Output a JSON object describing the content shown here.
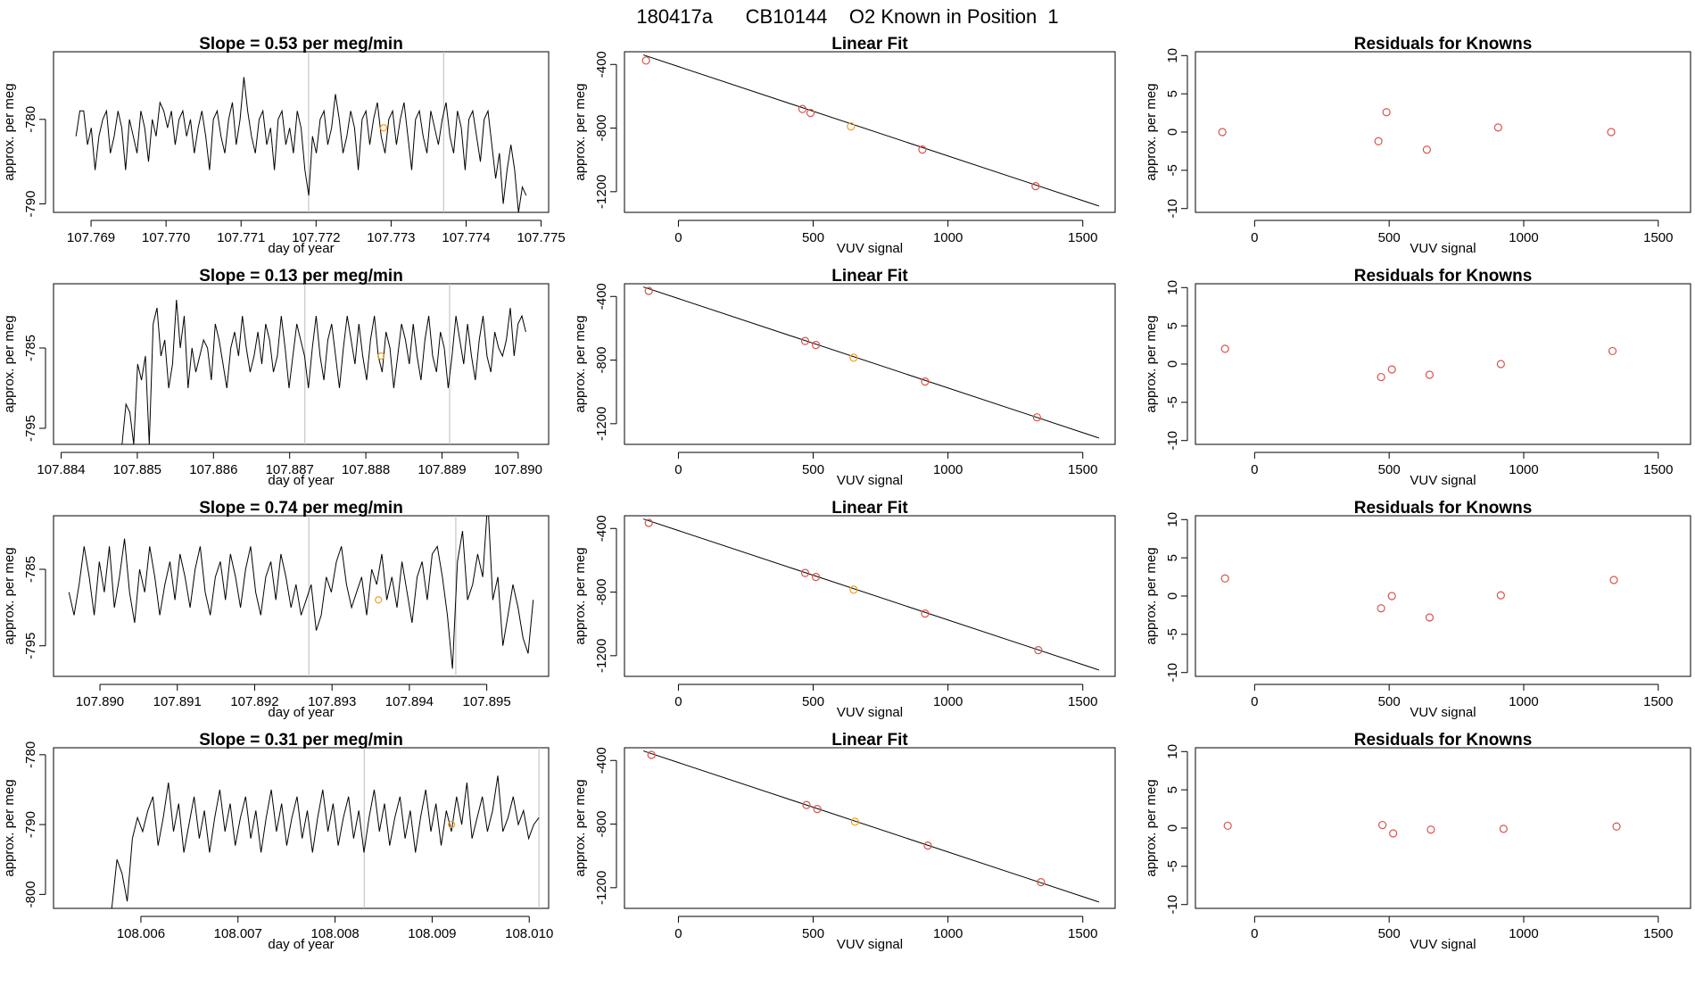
{
  "main_title": "180417a      CB10144    O2 Known in Position  1",
  "colors": {
    "point": "#d9534f",
    "highlight": "#f0a020",
    "line": "#000000",
    "marker_line": "#bbbbbb"
  },
  "chart_data": [
    {
      "type": "line",
      "panel": "drift",
      "row": 1,
      "title": "Slope =  0.53  per meg/min",
      "xlabel": "day of year",
      "ylabel": "approx. per meg",
      "xlim": [
        107.7685,
        107.7751
      ],
      "ylim": [
        -791,
        -772
      ],
      "xticks": [
        107.769,
        107.77,
        107.771,
        107.772,
        107.773,
        107.774,
        107.775
      ],
      "xtick_labels": [
        "107.769",
        "107.770",
        "107.771",
        "107.772",
        "107.773",
        "107.774",
        "107.775"
      ],
      "yticks": [
        -790,
        -780
      ],
      "ytick_labels": [
        "-790",
        "-780"
      ],
      "x_start": 107.7688,
      "x_end": 107.7748,
      "marker_x": [
        107.7719,
        107.7737
      ],
      "highlight_point": {
        "x": 107.7729,
        "y": -781
      },
      "y_values": [
        -782,
        -779,
        -779,
        -783,
        -781,
        -786,
        -782,
        -780,
        -779,
        -784,
        -782,
        -779,
        -781,
        -786,
        -780,
        -782,
        -784,
        -779,
        -781,
        -785,
        -780,
        -782,
        -778,
        -779,
        -781,
        -779,
        -783,
        -780,
        -779,
        -782,
        -780,
        -784,
        -781,
        -779,
        -782,
        -786,
        -780,
        -779,
        -782,
        -784,
        -780,
        -778,
        -783,
        -780,
        -775,
        -779,
        -782,
        -784,
        -780,
        -779,
        -783,
        -781,
        -786,
        -780,
        -779,
        -783,
        -781,
        -784,
        -779,
        -781,
        -786,
        -789,
        -782,
        -784,
        -780,
        -779,
        -783,
        -781,
        -777,
        -780,
        -784,
        -782,
        -779,
        -781,
        -786,
        -780,
        -779,
        -783,
        -780,
        -778,
        -782,
        -784,
        -780,
        -779,
        -783,
        -780,
        -778,
        -782,
        -786,
        -780,
        -779,
        -782,
        -784,
        -779,
        -781,
        -783,
        -780,
        -778,
        -782,
        -784,
        -779,
        -781,
        -786,
        -780,
        -779,
        -782,
        -785,
        -780,
        -779,
        -783,
        -787,
        -784,
        -790,
        -786,
        -783,
        -786,
        -791,
        -788,
        -789
      ]
    },
    {
      "type": "line",
      "panel": "drift",
      "row": 2,
      "title": "Slope =  0.13  per meg/min",
      "xlabel": "day of year",
      "ylabel": "approx. per meg",
      "xlim": [
        107.8839,
        107.8904
      ],
      "ylim": [
        -797,
        -777
      ],
      "xticks": [
        107.884,
        107.885,
        107.886,
        107.887,
        107.888,
        107.889,
        107.89
      ],
      "xtick_labels": [
        "107.884",
        "107.885",
        "107.886",
        "107.887",
        "107.888",
        "107.889",
        "107.890"
      ],
      "yticks": [
        -795,
        -785
      ],
      "ytick_labels": [
        "-795",
        "-785"
      ],
      "x_start": 107.8848,
      "x_end": 107.8901,
      "marker_x": [
        107.8872,
        107.8891
      ],
      "highlight_point": {
        "x": 107.8882,
        "y": -786
      },
      "y_values": [
        -797,
        -792,
        -793,
        -797,
        -787,
        -789,
        -786,
        -797,
        -782,
        -780,
        -786,
        -784,
        -790,
        -787,
        -779,
        -785,
        -781,
        -790,
        -785,
        -788,
        -786,
        -784,
        -785,
        -789,
        -782,
        -784,
        -787,
        -790,
        -785,
        -783,
        -786,
        -781,
        -785,
        -788,
        -786,
        -783,
        -787,
        -782,
        -784,
        -788,
        -786,
        -781,
        -785,
        -790,
        -786,
        -782,
        -784,
        -786,
        -790,
        -785,
        -781,
        -786,
        -789,
        -784,
        -782,
        -786,
        -790,
        -785,
        -781,
        -784,
        -787,
        -782,
        -786,
        -789,
        -784,
        -781,
        -786,
        -788,
        -783,
        -785,
        -790,
        -786,
        -782,
        -784,
        -787,
        -782,
        -786,
        -789,
        -784,
        -781,
        -786,
        -788,
        -783,
        -785,
        -790,
        -786,
        -781,
        -784,
        -787,
        -782,
        -786,
        -789,
        -784,
        -781,
        -786,
        -788,
        -783,
        -785,
        -786,
        -784,
        -780,
        -786,
        -782,
        -781,
        -783
      ]
    },
    {
      "type": "line",
      "panel": "drift",
      "row": 3,
      "title": "Slope =  0.74  per meg/min",
      "xlabel": "day of year",
      "ylabel": "approx. per meg",
      "xlim": [
        107.8894,
        107.8958
      ],
      "ylim": [
        -799,
        -778
      ],
      "xticks": [
        107.89,
        107.891,
        107.892,
        107.893,
        107.894,
        107.895
      ],
      "xtick_labels": [
        "107.890",
        "107.891",
        "107.892",
        "107.893",
        "107.894",
        "107.895"
      ],
      "yticks": [
        -795,
        -785
      ],
      "ytick_labels": [
        "-795",
        "-785"
      ],
      "x_start": 107.8896,
      "x_end": 107.8956,
      "marker_x": [
        107.8927,
        107.8946
      ],
      "highlight_point": {
        "x": 107.8936,
        "y": -789
      },
      "y_values": [
        -788,
        -791,
        -787,
        -782,
        -786,
        -791,
        -784,
        -788,
        -782,
        -790,
        -786,
        -781,
        -788,
        -792,
        -785,
        -788,
        -782,
        -786,
        -791,
        -787,
        -784,
        -789,
        -783,
        -786,
        -790,
        -785,
        -782,
        -788,
        -791,
        -786,
        -784,
        -789,
        -783,
        -786,
        -790,
        -785,
        -782,
        -788,
        -791,
        -786,
        -784,
        -789,
        -783,
        -786,
        -790,
        -787,
        -791,
        -789,
        -787,
        -793,
        -791,
        -786,
        -788,
        -784,
        -782,
        -787,
        -790,
        -788,
        -786,
        -791,
        -785,
        -787,
        -783,
        -789,
        -786,
        -790,
        -784,
        -788,
        -792,
        -786,
        -784,
        -789,
        -783,
        -782,
        -786,
        -791,
        -798,
        -784,
        -780,
        -789,
        -787,
        -783,
        -786,
        -776,
        -789,
        -786,
        -795,
        -791,
        -787,
        -790,
        -794,
        -796,
        -789
      ]
    },
    {
      "type": "line",
      "panel": "drift",
      "row": 4,
      "title": "Slope =  0.31  per meg/min",
      "xlabel": "day of year",
      "ylabel": "approx. per meg",
      "xlim": [
        108.0051,
        108.0102
      ],
      "ylim": [
        -802,
        -779
      ],
      "xticks": [
        108.006,
        108.007,
        108.008,
        108.009,
        108.01
      ],
      "xtick_labels": [
        "108.006",
        "108.007",
        "108.008",
        "108.009",
        "108.010"
      ],
      "yticks": [
        -800,
        -790,
        -780
      ],
      "ytick_labels": [
        "-800",
        "-790",
        "-780"
      ],
      "x_start": 108.0057,
      "x_end": 108.0101,
      "marker_x": [
        108.0083,
        108.0101
      ],
      "highlight_point": {
        "x": 108.0092,
        "y": -790
      },
      "y_values": [
        -802,
        -795,
        -797,
        -801,
        -792,
        -789,
        -791,
        -788,
        -786,
        -793,
        -789,
        -784,
        -791,
        -787,
        -794,
        -790,
        -786,
        -792,
        -788,
        -794,
        -789,
        -785,
        -791,
        -787,
        -793,
        -789,
        -786,
        -792,
        -788,
        -794,
        -789,
        -785,
        -791,
        -787,
        -793,
        -789,
        -786,
        -792,
        -788,
        -794,
        -789,
        -785,
        -791,
        -787,
        -793,
        -789,
        -786,
        -792,
        -788,
        -794,
        -789,
        -785,
        -791,
        -787,
        -793,
        -789,
        -786,
        -792,
        -788,
        -794,
        -789,
        -785,
        -791,
        -787,
        -793,
        -788,
        -791,
        -786,
        -790,
        -784,
        -792,
        -789,
        -786,
        -791,
        -788,
        -783,
        -791,
        -789,
        -786,
        -790,
        -788,
        -792,
        -790,
        -789
      ]
    },
    {
      "type": "scatter",
      "panel": "fit",
      "row": 1,
      "title": "Linear Fit",
      "xlabel": "VUV signal",
      "ylabel": "approx. per meg",
      "xlim": [
        -200,
        1620
      ],
      "ylim": [
        -1330,
        -320
      ],
      "xticks": [
        0,
        500,
        1000,
        1500
      ],
      "yticks": [
        -1200,
        -800,
        -400
      ],
      "xtick_labels": [
        "0",
        "500",
        "1000",
        "1500"
      ],
      "ytick_labels": [
        "-1200",
        "-800",
        "-400"
      ],
      "fit_line": {
        "x": [
          -130,
          1560
        ],
        "y": [
          -340,
          -1290
        ]
      },
      "points": [
        {
          "x": -120,
          "y": -375
        },
        {
          "x": 460,
          "y": -680
        },
        {
          "x": 490,
          "y": -705
        },
        {
          "x": 905,
          "y": -935
        },
        {
          "x": 1325,
          "y": -1165
        }
      ],
      "highlight_points": [
        {
          "x": 640,
          "y": -790
        }
      ]
    },
    {
      "type": "scatter",
      "panel": "fit",
      "row": 2,
      "title": "Linear Fit",
      "xlabel": "VUV signal",
      "ylabel": "approx. per meg",
      "xlim": [
        -200,
        1620
      ],
      "ylim": [
        -1330,
        -320
      ],
      "xticks": [
        0,
        500,
        1000,
        1500
      ],
      "yticks": [
        -1200,
        -800,
        -400
      ],
      "xtick_labels": [
        "0",
        "500",
        "1000",
        "1500"
      ],
      "ytick_labels": [
        "-1200",
        "-800",
        "-400"
      ],
      "fit_line": {
        "x": [
          -130,
          1560
        ],
        "y": [
          -340,
          -1290
        ]
      },
      "points": [
        {
          "x": -110,
          "y": -365
        },
        {
          "x": 470,
          "y": -680
        },
        {
          "x": 510,
          "y": -705
        },
        {
          "x": 915,
          "y": -935
        },
        {
          "x": 1330,
          "y": -1160
        }
      ],
      "highlight_points": [
        {
          "x": 650,
          "y": -785
        }
      ]
    },
    {
      "type": "scatter",
      "panel": "fit",
      "row": 3,
      "title": "Linear Fit",
      "xlabel": "VUV signal",
      "ylabel": "approx. per meg",
      "xlim": [
        -200,
        1620
      ],
      "ylim": [
        -1330,
        -320
      ],
      "xticks": [
        0,
        500,
        1000,
        1500
      ],
      "yticks": [
        -1200,
        -800,
        -400
      ],
      "xtick_labels": [
        "0",
        "500",
        "1000",
        "1500"
      ],
      "ytick_labels": [
        "-1200",
        "-800",
        "-400"
      ],
      "fit_line": {
        "x": [
          -130,
          1560
        ],
        "y": [
          -340,
          -1290
        ]
      },
      "points": [
        {
          "x": -110,
          "y": -365
        },
        {
          "x": 470,
          "y": -680
        },
        {
          "x": 510,
          "y": -705
        },
        {
          "x": 915,
          "y": -935
        },
        {
          "x": 1335,
          "y": -1165
        }
      ],
      "highlight_points": [
        {
          "x": 650,
          "y": -785
        }
      ]
    },
    {
      "type": "scatter",
      "panel": "fit",
      "row": 4,
      "title": "Linear Fit",
      "xlabel": "VUV signal",
      "ylabel": "approx. per meg",
      "xlim": [
        -200,
        1620
      ],
      "ylim": [
        -1330,
        -320
      ],
      "xticks": [
        0,
        500,
        1000,
        1500
      ],
      "yticks": [
        -1200,
        -800,
        -400
      ],
      "xtick_labels": [
        "0",
        "500",
        "1000",
        "1500"
      ],
      "ytick_labels": [
        "-1200",
        "-800",
        "-400"
      ],
      "fit_line": {
        "x": [
          -130,
          1560
        ],
        "y": [
          -340,
          -1290
        ]
      },
      "points": [
        {
          "x": -100,
          "y": -365
        },
        {
          "x": 475,
          "y": -680
        },
        {
          "x": 515,
          "y": -705
        },
        {
          "x": 925,
          "y": -935
        },
        {
          "x": 1345,
          "y": -1165
        }
      ],
      "highlight_points": [
        {
          "x": 655,
          "y": -785
        }
      ]
    },
    {
      "type": "scatter",
      "panel": "residuals",
      "row": 1,
      "title": "Residuals for Knowns",
      "xlabel": "VUV signal",
      "ylabel": "approx. per meg",
      "xlim": [
        -220,
        1620
      ],
      "ylim": [
        -10.5,
        10.5
      ],
      "xticks": [
        0,
        500,
        1000,
        1500
      ],
      "yticks": [
        -10,
        -5,
        0,
        5,
        10
      ],
      "xtick_labels": [
        "0",
        "500",
        "1000",
        "1500"
      ],
      "ytick_labels": [
        "-10",
        "-5",
        "0",
        "5",
        "10"
      ],
      "points": [
        {
          "x": -120,
          "y": 0.0
        },
        {
          "x": 460,
          "y": -1.2
        },
        {
          "x": 490,
          "y": 2.6
        },
        {
          "x": 640,
          "y": -2.3
        },
        {
          "x": 905,
          "y": 0.6
        },
        {
          "x": 1325,
          "y": 0.0
        }
      ]
    },
    {
      "type": "scatter",
      "panel": "residuals",
      "row": 2,
      "title": "Residuals for Knowns",
      "xlabel": "VUV signal",
      "ylabel": "approx. per meg",
      "xlim": [
        -220,
        1620
      ],
      "ylim": [
        -10.5,
        10.5
      ],
      "xticks": [
        0,
        500,
        1000,
        1500
      ],
      "yticks": [
        -10,
        -5,
        0,
        5,
        10
      ],
      "xtick_labels": [
        "0",
        "500",
        "1000",
        "1500"
      ],
      "ytick_labels": [
        "-10",
        "-5",
        "0",
        "5",
        "10"
      ],
      "points": [
        {
          "x": -110,
          "y": 2.0
        },
        {
          "x": 470,
          "y": -1.7
        },
        {
          "x": 510,
          "y": -0.7
        },
        {
          "x": 650,
          "y": -1.4
        },
        {
          "x": 915,
          "y": 0.0
        },
        {
          "x": 1330,
          "y": 1.7
        }
      ]
    },
    {
      "type": "scatter",
      "panel": "residuals",
      "row": 3,
      "title": "Residuals for Knowns",
      "xlabel": "VUV signal",
      "ylabel": "approx. per meg",
      "xlim": [
        -220,
        1620
      ],
      "ylim": [
        -10.5,
        10.5
      ],
      "xticks": [
        0,
        500,
        1000,
        1500
      ],
      "yticks": [
        -10,
        -5,
        0,
        5,
        10
      ],
      "xtick_labels": [
        "0",
        "500",
        "1000",
        "1500"
      ],
      "ytick_labels": [
        "-10",
        "-5",
        "0",
        "5",
        "10"
      ],
      "points": [
        {
          "x": -110,
          "y": 2.3
        },
        {
          "x": 470,
          "y": -1.6
        },
        {
          "x": 510,
          "y": 0.0
        },
        {
          "x": 650,
          "y": -2.8
        },
        {
          "x": 915,
          "y": 0.1
        },
        {
          "x": 1335,
          "y": 2.1
        }
      ]
    },
    {
      "type": "scatter",
      "panel": "residuals",
      "row": 4,
      "title": "Residuals for Knowns",
      "xlabel": "VUV signal",
      "ylabel": "approx. per meg",
      "xlim": [
        -220,
        1620
      ],
      "ylim": [
        -10.5,
        10.5
      ],
      "xticks": [
        0,
        500,
        1000,
        1500
      ],
      "yticks": [
        -10,
        -5,
        0,
        5,
        10
      ],
      "xtick_labels": [
        "0",
        "500",
        "1000",
        "1500"
      ],
      "ytick_labels": [
        "-10",
        "-5",
        "0",
        "5",
        "10"
      ],
      "points": [
        {
          "x": -100,
          "y": 0.3
        },
        {
          "x": 475,
          "y": 0.4
        },
        {
          "x": 515,
          "y": -0.7
        },
        {
          "x": 655,
          "y": -0.2
        },
        {
          "x": 925,
          "y": -0.1
        },
        {
          "x": 1345,
          "y": 0.2
        }
      ]
    }
  ]
}
